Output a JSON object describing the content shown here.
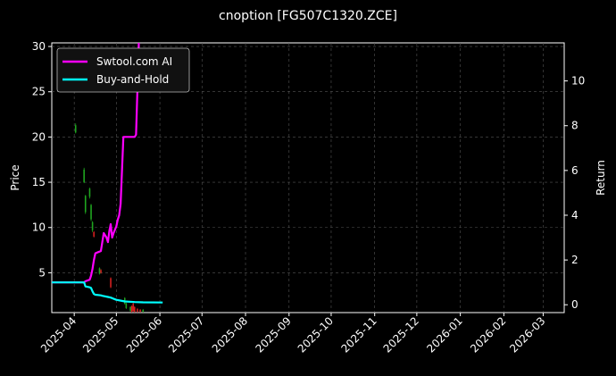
{
  "chart_data": {
    "type": "line",
    "title": "cnoption [FG507C1320.ZCE]",
    "ylabel": "Price",
    "y2label": "Return",
    "xlabel": "",
    "grid": true,
    "legend_position": "top-left",
    "x_range": [
      "2025-03-16",
      "2026-03-16"
    ],
    "ylim": [
      0.6,
      30.4
    ],
    "y2lim": [
      -0.35,
      11.7
    ],
    "x_ticks": [
      "2025-04-01",
      "2025-05-01",
      "2025-06-01",
      "2025-07-01",
      "2025-08-01",
      "2025-09-01",
      "2025-10-01",
      "2025-11-01",
      "2025-12-01",
      "2026-01-01",
      "2026-02-01",
      "2026-03-01"
    ],
    "x_tick_labels": [
      "2025-04",
      "2025-05",
      "2025-06",
      "2025-07",
      "2025-08",
      "2025-09",
      "2025-10",
      "2025-11",
      "2025-12",
      "2026-01",
      "2026-02",
      "2026-03"
    ],
    "y_ticks": [
      5,
      10,
      15,
      20,
      25,
      30
    ],
    "y2_ticks": [
      0,
      2,
      4,
      6,
      8,
      10
    ],
    "candles": [
      {
        "date": "2025-04-02",
        "open": 21.3,
        "close": 20.5,
        "high": 21.5,
        "low": 20.4,
        "dir": "up"
      },
      {
        "date": "2025-04-08",
        "open": 16.4,
        "close": 15.0,
        "high": 16.6,
        "low": 14.9,
        "dir": "up"
      },
      {
        "date": "2025-04-09",
        "open": 13.5,
        "close": 11.7,
        "high": 13.6,
        "low": 11.5,
        "dir": "up"
      },
      {
        "date": "2025-04-12",
        "open": 14.3,
        "close": 13.4,
        "high": 14.4,
        "low": 13.2,
        "dir": "up"
      },
      {
        "date": "2025-04-13",
        "open": 12.5,
        "close": 10.9,
        "high": 12.6,
        "low": 10.7,
        "dir": "up"
      },
      {
        "date": "2025-04-14",
        "open": 10.6,
        "close": 9.7,
        "high": 10.7,
        "low": 9.5,
        "dir": "up"
      },
      {
        "date": "2025-04-15",
        "open": 9.5,
        "close": 9.0,
        "high": 9.6,
        "low": 8.9,
        "dir": "down"
      },
      {
        "date": "2025-04-19",
        "open": 5.5,
        "close": 4.9,
        "high": 5.6,
        "low": 4.8,
        "dir": "up"
      },
      {
        "date": "2025-04-20",
        "open": 5.3,
        "close": 5.0,
        "high": 5.4,
        "low": 4.9,
        "dir": "down"
      },
      {
        "date": "2025-04-27",
        "open": 4.4,
        "close": 3.4,
        "high": 4.5,
        "low": 3.3,
        "dir": "down"
      },
      {
        "date": "2025-05-07",
        "open": 2.2,
        "close": 1.6,
        "high": 2.3,
        "low": 1.5,
        "dir": "up"
      },
      {
        "date": "2025-05-08",
        "open": 1.6,
        "close": 1.1,
        "high": 1.7,
        "low": 1.0,
        "dir": "up"
      },
      {
        "date": "2025-05-11",
        "open": 1.2,
        "close": 0.8,
        "high": 1.3,
        "low": 0.7,
        "dir": "up"
      },
      {
        "date": "2025-05-12",
        "open": 1.3,
        "close": 0.7,
        "high": 1.4,
        "low": 0.6,
        "dir": "down"
      },
      {
        "date": "2025-05-13",
        "open": 1.6,
        "close": 0.8,
        "high": 1.7,
        "low": 0.7,
        "dir": "down"
      },
      {
        "date": "2025-05-14",
        "open": 1.2,
        "close": 0.7,
        "high": 1.3,
        "low": 0.6,
        "dir": "down"
      },
      {
        "date": "2025-05-16",
        "open": 1.0,
        "close": 0.7,
        "high": 1.1,
        "low": 0.6,
        "dir": "down"
      },
      {
        "date": "2025-05-18",
        "open": 0.9,
        "close": 0.7,
        "high": 1.0,
        "low": 0.6,
        "dir": "down"
      },
      {
        "date": "2025-05-20",
        "open": 0.9,
        "close": 0.7,
        "high": 1.0,
        "low": 0.6,
        "dir": "up"
      }
    ],
    "series": [
      {
        "name": "Swtool.com AI",
        "color": "#ff00ff",
        "axis": "right",
        "points": [
          [
            "2025-03-16",
            1.0
          ],
          [
            "2025-04-08",
            1.0
          ],
          [
            "2025-04-09",
            1.05
          ],
          [
            "2025-04-12",
            1.12
          ],
          [
            "2025-04-13",
            1.3
          ],
          [
            "2025-04-14",
            1.6
          ],
          [
            "2025-04-15",
            2.0
          ],
          [
            "2025-04-16",
            2.3
          ],
          [
            "2025-04-18",
            2.35
          ],
          [
            "2025-04-20",
            2.4
          ],
          [
            "2025-04-22",
            3.2
          ],
          [
            "2025-04-24",
            3.0
          ],
          [
            "2025-04-25",
            2.8
          ],
          [
            "2025-04-26",
            3.3
          ],
          [
            "2025-04-27",
            3.6
          ],
          [
            "2025-04-28",
            3.0
          ],
          [
            "2025-04-29",
            3.2
          ],
          [
            "2025-05-01",
            3.5
          ],
          [
            "2025-05-02",
            3.8
          ],
          [
            "2025-05-03",
            4.0
          ],
          [
            "2025-05-04",
            4.5
          ],
          [
            "2025-05-06",
            7.5
          ],
          [
            "2025-05-07",
            7.5
          ],
          [
            "2025-05-14",
            7.5
          ],
          [
            "2025-05-15",
            7.6
          ],
          [
            "2025-05-17",
            11.7
          ]
        ]
      },
      {
        "name": "Buy-and-Hold",
        "color": "#00ffff",
        "axis": "right",
        "points": [
          [
            "2025-03-16",
            1.0
          ],
          [
            "2025-04-08",
            1.0
          ],
          [
            "2025-04-09",
            0.82
          ],
          [
            "2025-04-12",
            0.78
          ],
          [
            "2025-04-13",
            0.75
          ],
          [
            "2025-04-14",
            0.6
          ],
          [
            "2025-04-15",
            0.48
          ],
          [
            "2025-04-16",
            0.45
          ],
          [
            "2025-04-20",
            0.42
          ],
          [
            "2025-04-21",
            0.4
          ],
          [
            "2025-04-25",
            0.35
          ],
          [
            "2025-04-27",
            0.32
          ],
          [
            "2025-05-01",
            0.22
          ],
          [
            "2025-05-07",
            0.15
          ],
          [
            "2025-05-14",
            0.12
          ],
          [
            "2025-05-20",
            0.11
          ],
          [
            "2025-06-03",
            0.1
          ]
        ]
      }
    ]
  }
}
